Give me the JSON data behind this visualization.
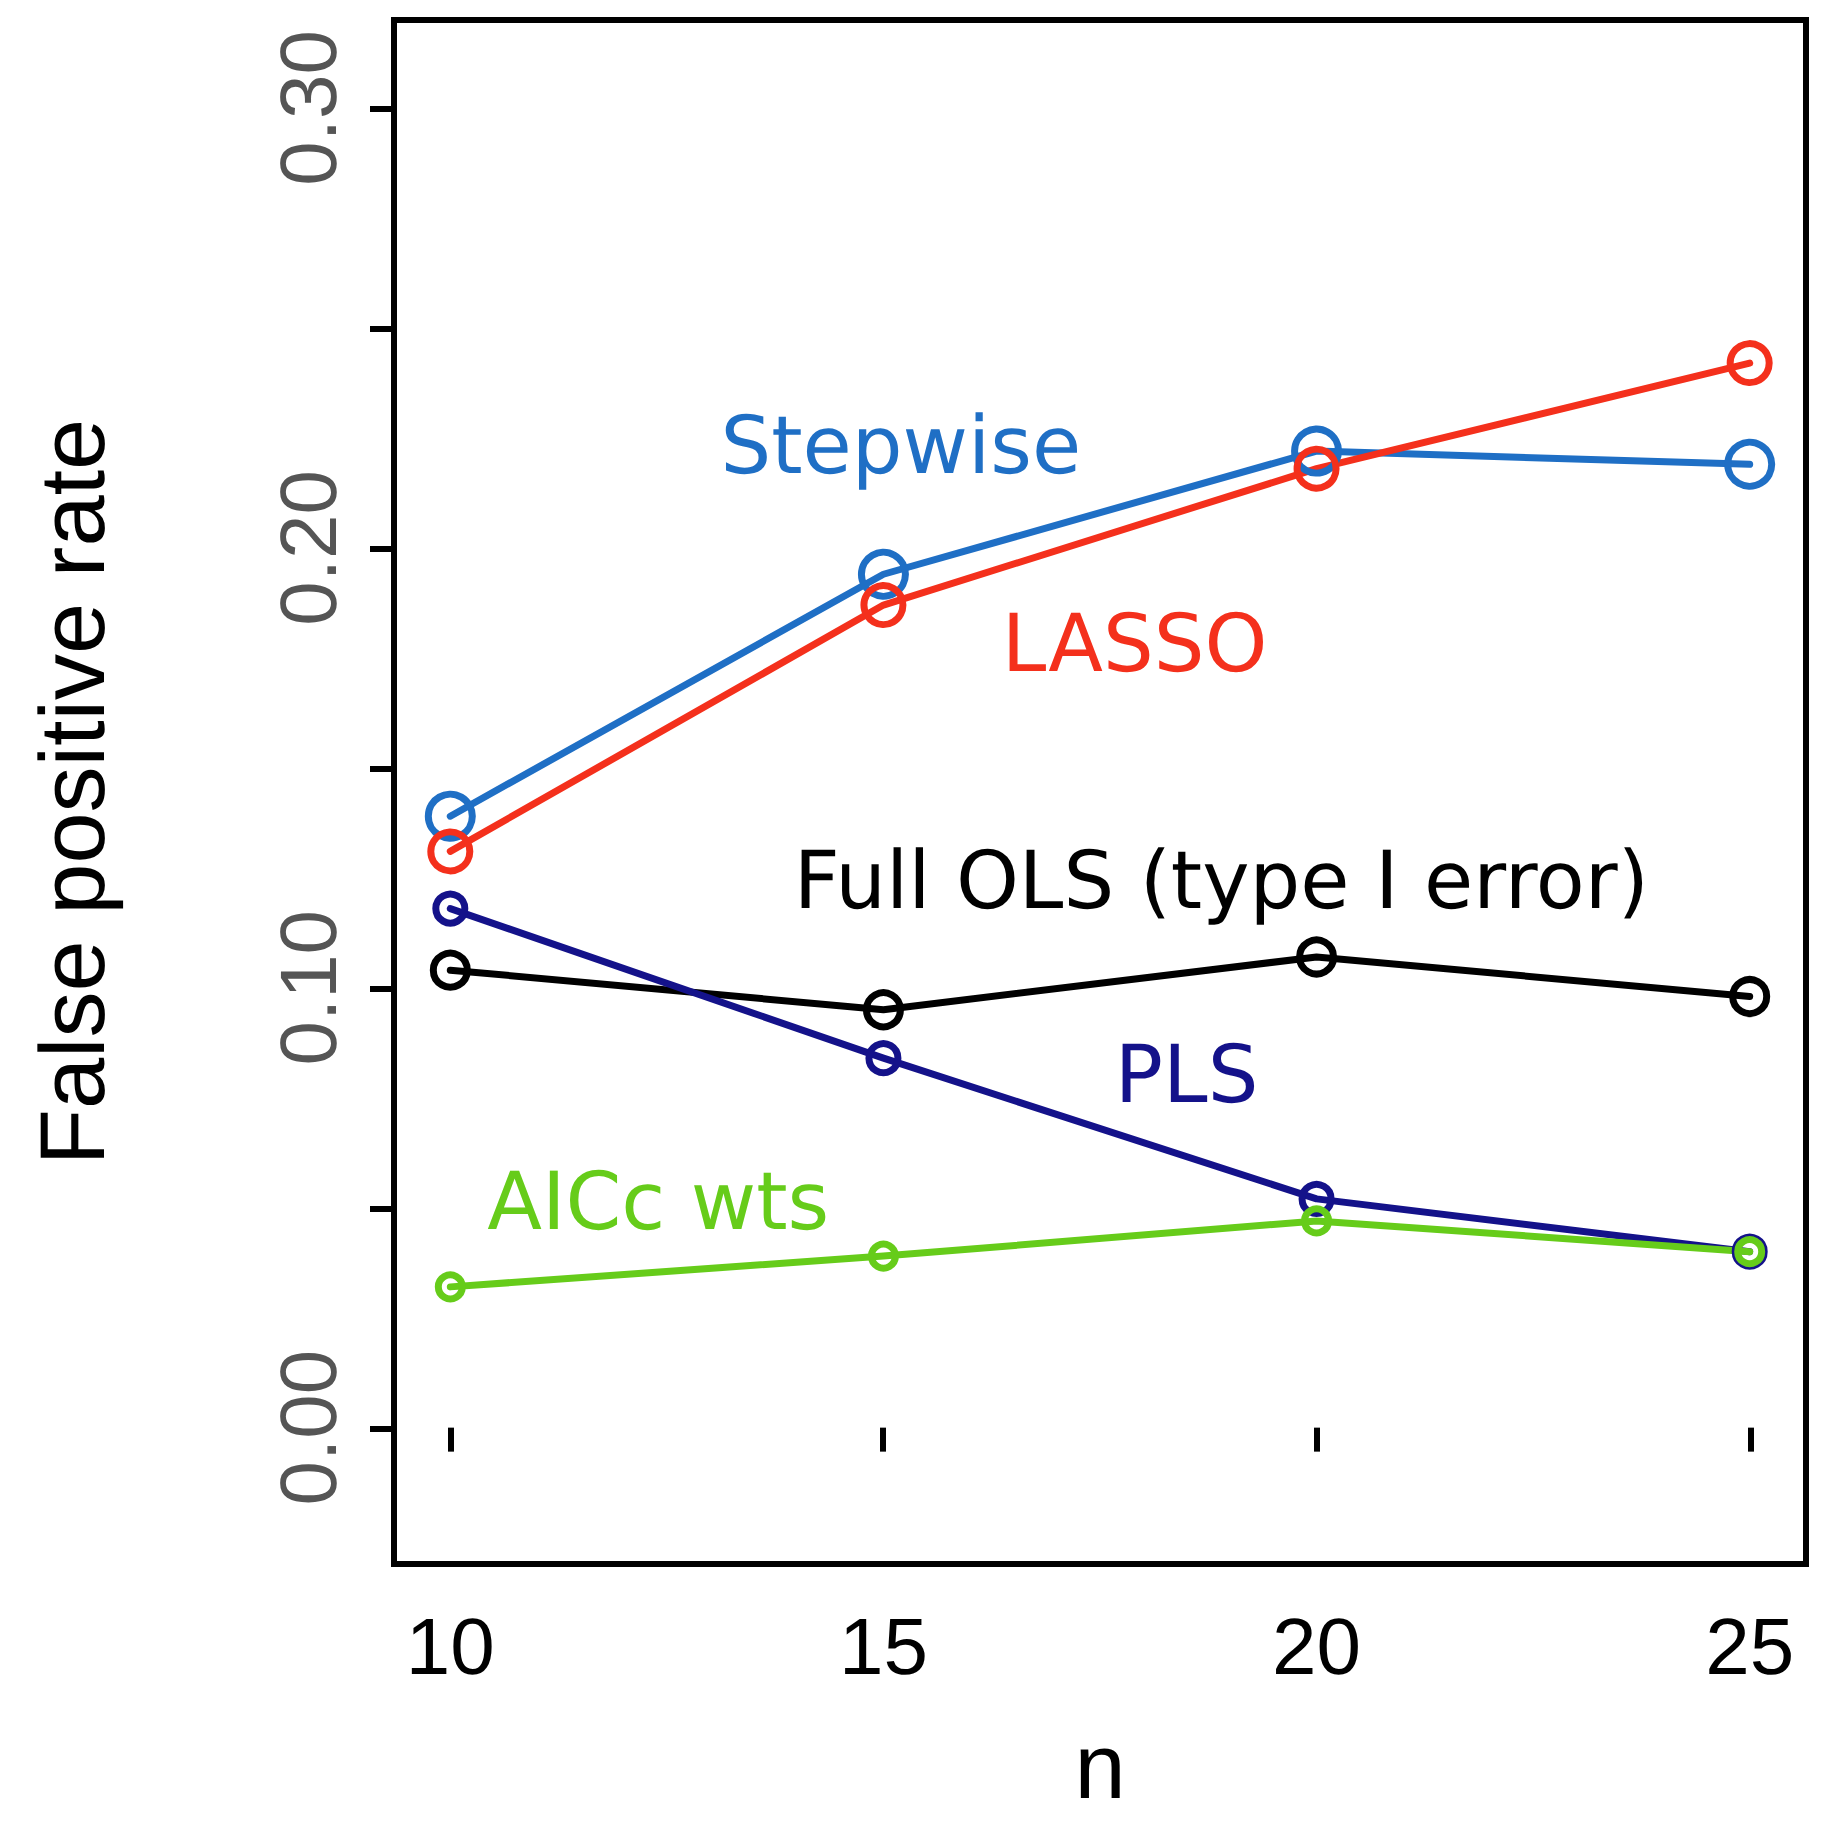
{
  "chart_data": {
    "type": "line",
    "xlabel": "n",
    "ylabel": "False positive rate",
    "x": [
      10,
      15,
      20,
      25
    ],
    "xlim": [
      9.35,
      25.65
    ],
    "xticks": [
      10,
      15,
      20,
      25
    ],
    "ylim": [
      -0.031,
      0.32
    ],
    "yticks": [
      {
        "value": 0,
        "label": "0.00"
      },
      {
        "value": 0.05,
        "label": null
      },
      {
        "value": 0.1,
        "label": "0.10"
      },
      {
        "value": 0.15,
        "label": null
      },
      {
        "value": 0.2,
        "label": "0.20"
      },
      {
        "value": 0.25,
        "label": null
      },
      {
        "value": 0.3,
        "label": "0.30"
      }
    ],
    "grid": false,
    "legend": false,
    "marker": "circle",
    "line_style": "solid",
    "series": [
      {
        "name": "Stepwise",
        "color": "#1f6fc5",
        "values": [
          0.139,
          0.194,
          0.222,
          0.219
        ]
      },
      {
        "name": "LASSO",
        "color": "#f4301c",
        "values": [
          0.131,
          0.187,
          0.218,
          0.242
        ]
      },
      {
        "name": "Full OLS (type I error)",
        "color": "#000000",
        "values": [
          0.104,
          0.095,
          0.107,
          0.098
        ]
      },
      {
        "name": "PLS",
        "color": "#14128a",
        "values": [
          0.118,
          0.084,
          0.052,
          0.04
        ]
      },
      {
        "name": "AICc wts",
        "color": "#66cc1a",
        "values": [
          0.032,
          0.039,
          0.047,
          0.04
        ]
      }
    ]
  }
}
